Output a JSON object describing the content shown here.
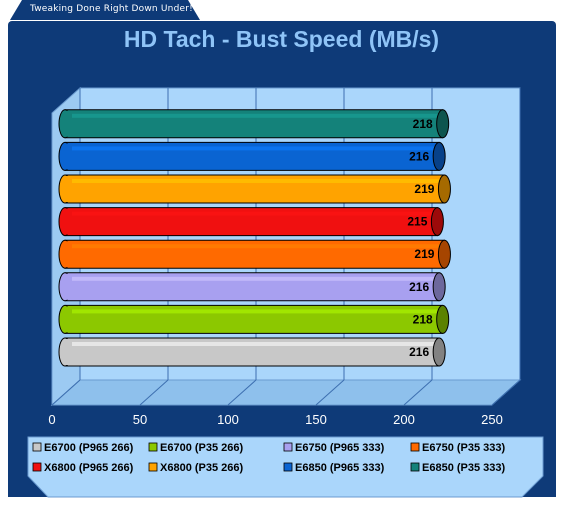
{
  "header": {
    "tagline": "Tweaking Done Right Down Under!"
  },
  "colors": {
    "panel": "#0e3a78",
    "plot_wall": "#aad6fb",
    "title": "#8fc4f7"
  },
  "chart_data": {
    "type": "bar",
    "orientation": "horizontal",
    "title": "HD Tach - Bust Speed (MB/s)",
    "xlim": [
      0,
      250
    ],
    "xticks": [
      0,
      50,
      100,
      150,
      200,
      250
    ],
    "grid": true,
    "legend_position": "bottom",
    "series": [
      {
        "name": "E6700 (P965 266)",
        "value": 216,
        "color": "#c8c8c8"
      },
      {
        "name": "E6700 (P35 266)",
        "value": 218,
        "color": "#8cc800"
      },
      {
        "name": "E6750 (P965 333)",
        "value": 216,
        "color": "#a8a0f0"
      },
      {
        "name": "E6750 (P35 333)",
        "value": 219,
        "color": "#ff6a00"
      },
      {
        "name": "X6800 (P965 266)",
        "value": 215,
        "color": "#f01010"
      },
      {
        "name": "X6800 (P35 266)",
        "value": 219,
        "color": "#ffa300"
      },
      {
        "name": "E6850 (P965 333)",
        "value": 216,
        "color": "#0a64d2"
      },
      {
        "name": "E6850 (P35 333)",
        "value": 218,
        "color": "#14827a"
      }
    ]
  }
}
